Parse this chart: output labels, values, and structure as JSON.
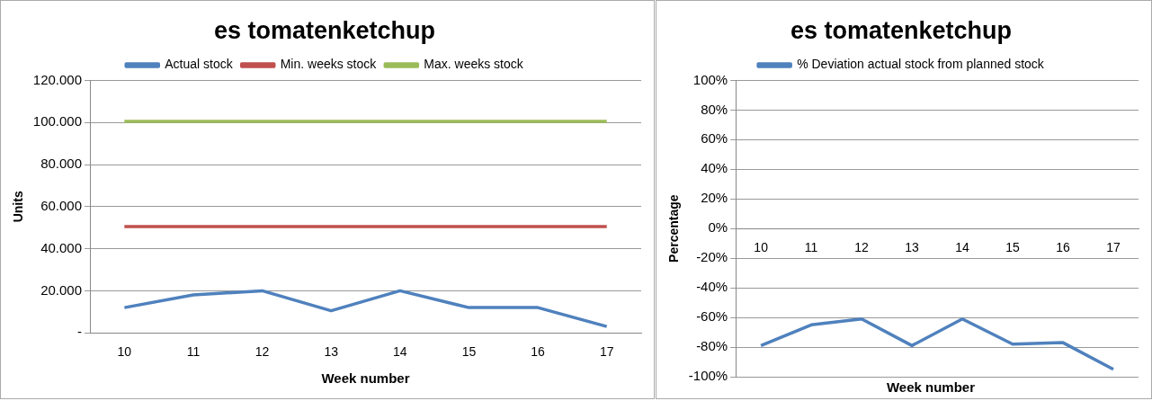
{
  "chart_data": [
    {
      "type": "line",
      "title": "es tomatenketchup",
      "xlabel": "Week number",
      "ylabel": "Units",
      "categories": [
        "10",
        "11",
        "12",
        "13",
        "14",
        "15",
        "16",
        "17"
      ],
      "series": [
        {
          "name": "Actual stock",
          "color": "#4f81bd",
          "values": [
            12000,
            18000,
            20000,
            10500,
            20000,
            12000,
            12000,
            3000
          ]
        },
        {
          "name": "Min. weeks stock",
          "color": "#c0504d",
          "values": [
            50500,
            50500,
            50500,
            50500,
            50500,
            50500,
            50500,
            50500
          ]
        },
        {
          "name": "Max. weeks stock",
          "color": "#9bbb59",
          "values": [
            100500,
            100500,
            100500,
            100500,
            100500,
            100500,
            100500,
            100500
          ]
        }
      ],
      "ylim": [
        0,
        120000
      ],
      "yticks": [
        {
          "value": 0,
          "label": "-"
        },
        {
          "value": 20000,
          "label": "20.000"
        },
        {
          "value": 40000,
          "label": "40.000"
        },
        {
          "value": 60000,
          "label": "60.000"
        },
        {
          "value": 80000,
          "label": "80.000"
        },
        {
          "value": 100000,
          "label": "100.000"
        },
        {
          "value": 120000,
          "label": "120.000"
        }
      ],
      "grid": "y",
      "legend": "top",
      "marker": "none",
      "line_style": "solid"
    },
    {
      "type": "line",
      "title": "es tomatenketchup",
      "xlabel": "Week number",
      "ylabel": "Percentage",
      "categories": [
        "10",
        "11",
        "12",
        "13",
        "14",
        "15",
        "16",
        "17"
      ],
      "series": [
        {
          "name": "% Deviation actual stock from planned stock",
          "color": "#4f81bd",
          "values": [
            -79,
            -65,
            -61,
            -79,
            -61,
            -78,
            -77,
            -95
          ]
        }
      ],
      "ylim": [
        -100,
        100
      ],
      "yticks": [
        {
          "value": -100,
          "label": "-100%"
        },
        {
          "value": -80,
          "label": "-80%"
        },
        {
          "value": -60,
          "label": "-60%"
        },
        {
          "value": -40,
          "label": "-40%"
        },
        {
          "value": -20,
          "label": "-20%"
        },
        {
          "value": 0,
          "label": "0%"
        },
        {
          "value": 20,
          "label": "20%"
        },
        {
          "value": 40,
          "label": "40%"
        },
        {
          "value": 60,
          "label": "60%"
        },
        {
          "value": 80,
          "label": "80%"
        },
        {
          "value": 100,
          "label": "100%"
        }
      ],
      "grid": "y",
      "legend": "top",
      "marker": "none",
      "line_style": "solid"
    }
  ]
}
